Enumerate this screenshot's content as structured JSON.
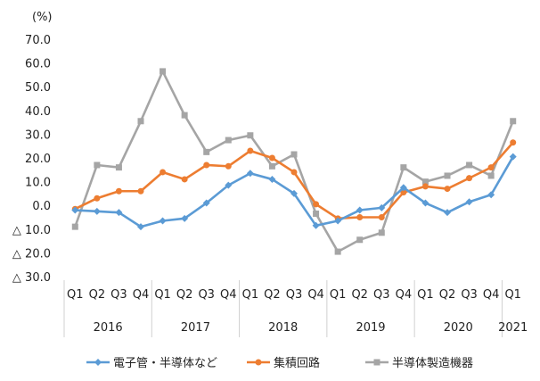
{
  "chart_data": {
    "type": "line",
    "unit_label": "(%)",
    "y_tick_labels": [
      "70.0",
      "60.0",
      "50.0",
      "40.0",
      "30.0",
      "20.0",
      "10.0",
      "0.0",
      "△ 10.0",
      "△ 20.0",
      "△ 30.0"
    ],
    "y_ticks": [
      70,
      60,
      50,
      40,
      30,
      20,
      10,
      0,
      -10,
      -20,
      -30
    ],
    "ylim": [
      -30,
      70
    ],
    "quarters": [
      "Q1",
      "Q2",
      "Q3",
      "Q4",
      "Q1",
      "Q2",
      "Q3",
      "Q4",
      "Q1",
      "Q2",
      "Q3",
      "Q4",
      "Q1",
      "Q2",
      "Q3",
      "Q4",
      "Q1",
      "Q2",
      "Q3",
      "Q4",
      "Q1"
    ],
    "years": [
      {
        "label": "2016",
        "start": 0,
        "count": 4
      },
      {
        "label": "2017",
        "start": 4,
        "count": 4
      },
      {
        "label": "2018",
        "start": 8,
        "count": 4
      },
      {
        "label": "2019",
        "start": 12,
        "count": 4
      },
      {
        "label": "2020",
        "start": 16,
        "count": 4
      },
      {
        "label": "2021",
        "start": 20,
        "count": 1
      }
    ],
    "series": [
      {
        "name": "電子管・半導体など",
        "color": "#5b9bd5",
        "marker": "diamond",
        "values": [
          -2,
          -2.5,
          -3,
          -9,
          -6.5,
          -5.5,
          1,
          8.5,
          13.5,
          11,
          5,
          -8.5,
          -6.5,
          -2,
          -1,
          7.5,
          1,
          -3,
          1.5,
          4.5,
          20.5
        ]
      },
      {
        "name": "集積回路",
        "color": "#ed7d31",
        "marker": "circle",
        "values": [
          -1.5,
          3,
          6,
          6,
          14,
          11,
          17,
          16.5,
          23,
          20,
          14,
          0.5,
          -5.5,
          -5,
          -5,
          5.5,
          8,
          7,
          11.5,
          16,
          26.5
        ]
      },
      {
        "name": "半導体製造機器",
        "color": "#a5a5a5",
        "marker": "square",
        "values": [
          -9,
          17,
          16,
          35.5,
          56.5,
          38,
          22.5,
          27.5,
          29.5,
          16.5,
          21.5,
          -3.5,
          -19.5,
          -14.5,
          -11.5,
          16,
          10,
          12.5,
          17,
          12.5,
          35.5
        ]
      }
    ]
  }
}
